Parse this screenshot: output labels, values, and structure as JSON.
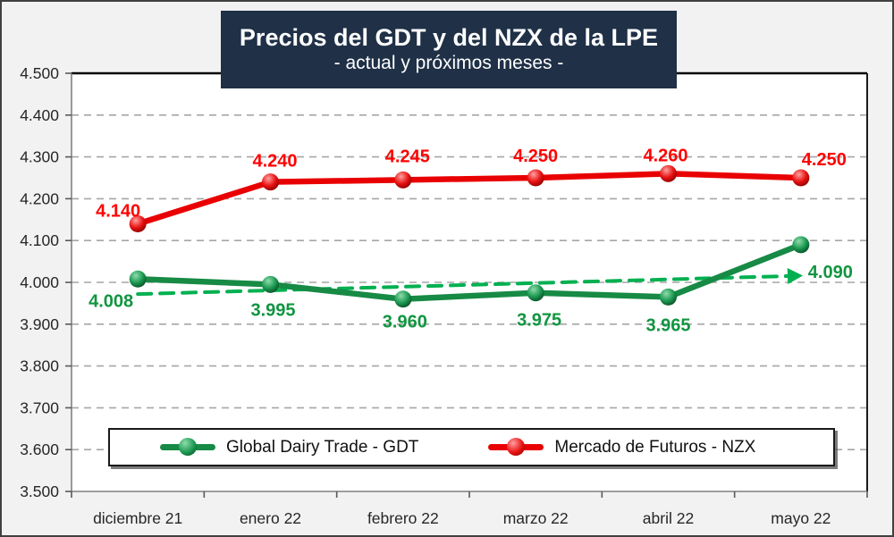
{
  "frame": {
    "background": "#F2F2F2",
    "border_color": "#404040",
    "plot_background": "#FFFFFF"
  },
  "title": {
    "line1": "Precios del GDT y del NZX de la LPE",
    "line2": "- actual y próximos meses -",
    "background": "#1F3047",
    "text_color": "#FFFFFF"
  },
  "legend": {
    "items": [
      {
        "key": "gdt",
        "label": "Global Dairy Trade - GDT",
        "line_color": "#178A45",
        "marker_gradient": [
          "#8FDCAC",
          "#1A9850",
          "#07401F"
        ]
      },
      {
        "key": "nzx",
        "label": "Mercado de Futuros - NZX",
        "line_color": "#E90000",
        "marker_gradient": [
          "#FFA0A0",
          "#E81010",
          "#7A0000"
        ]
      }
    ]
  },
  "chart_data": {
    "type": "line",
    "title": "Precios del GDT y del NZX de la LPE",
    "subtitle": "- actual y próximos meses -",
    "categories": [
      "diciembre 21",
      "enero 22",
      "febrero 22",
      "marzo 22",
      "abril 22",
      "mayo 22"
    ],
    "series": [
      {
        "key": "gdt",
        "name": "Global Dairy Trade - GDT",
        "values": [
          4008,
          3995,
          3960,
          3975,
          3965,
          4090
        ],
        "point_labels": [
          "4.008",
          "3.995",
          "3.960",
          "3.975",
          "3.965",
          "4.090"
        ],
        "line_color": "#178A45",
        "label_color": "#119540",
        "marker_gradient": [
          "#8FDCAC",
          "#1A9850",
          "#07401F"
        ],
        "label_offsets": [
          [
            -30,
            24
          ],
          [
            3,
            28
          ],
          [
            2,
            25
          ],
          [
            4,
            30
          ],
          [
            0,
            31
          ],
          [
            33,
            30
          ]
        ]
      },
      {
        "key": "nzx",
        "name": "Mercado de Futuros - NZX",
        "values": [
          4140,
          4240,
          4245,
          4250,
          4260,
          4250
        ],
        "point_labels": [
          "4.140",
          "4.240",
          "4.245",
          "4.250",
          "4.260",
          "4.250"
        ],
        "line_color": "#E90000",
        "label_color": "#FE0000",
        "marker_gradient": [
          "#FFA0A0",
          "#E81010",
          "#7A0000"
        ],
        "label_offsets": [
          [
            -22,
            -15
          ],
          [
            5,
            -24
          ],
          [
            5,
            -27
          ],
          [
            0,
            -25
          ],
          [
            -3,
            -21
          ],
          [
            26,
            -21
          ]
        ]
      }
    ],
    "y_axis": {
      "min": 3500,
      "max": 4500,
      "step": 100,
      "tick_labels": [
        "4.500",
        "4.400",
        "4.300",
        "4.200",
        "4.100",
        "4.000",
        "3.900",
        "3.800",
        "3.700",
        "3.600",
        "3.500"
      ],
      "tick_color": "#262626"
    },
    "x_axis": {
      "label_color": "#262626"
    },
    "grid": {
      "show": true,
      "color": "#A6A6A6"
    },
    "legend_position": "bottom-inside",
    "trend_arrow": {
      "color": "#00B050",
      "start": {
        "cat": 0.0,
        "value": 3972
      },
      "end": {
        "cat": 4.9,
        "value": 4015
      }
    }
  }
}
